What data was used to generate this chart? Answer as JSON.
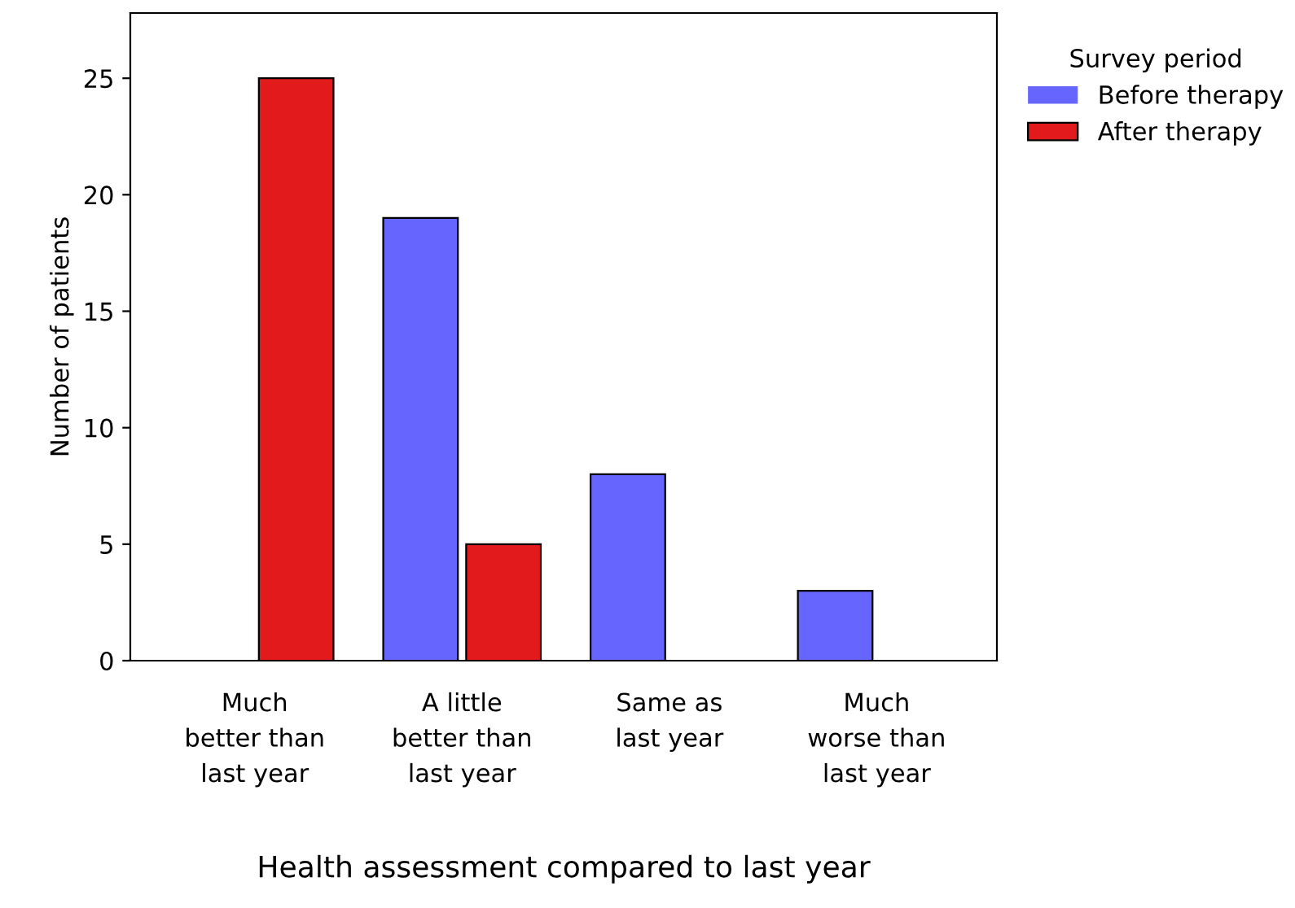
{
  "chart_data": {
    "type": "bar",
    "xlabel": "Health assessment compared to last year",
    "ylabel": "Number of patients",
    "legend_title": "Survey period",
    "categories": [
      "Much\nbetter than\nlast year",
      "A little\nbetter than\nlast year",
      "Same as\nlast year",
      "Much\nworse than\nlast year"
    ],
    "series": [
      {
        "name": "Before therapy",
        "color": "#6666ff",
        "values": [
          0,
          19,
          8,
          3
        ]
      },
      {
        "name": "After therapy",
        "color": "#e31a1c",
        "values": [
          25,
          5,
          0,
          0
        ]
      }
    ],
    "ylim": [
      0,
      27.8
    ],
    "yticks": [
      0,
      5,
      10,
      15,
      20,
      25
    ],
    "grid": false,
    "legend": "top right"
  }
}
